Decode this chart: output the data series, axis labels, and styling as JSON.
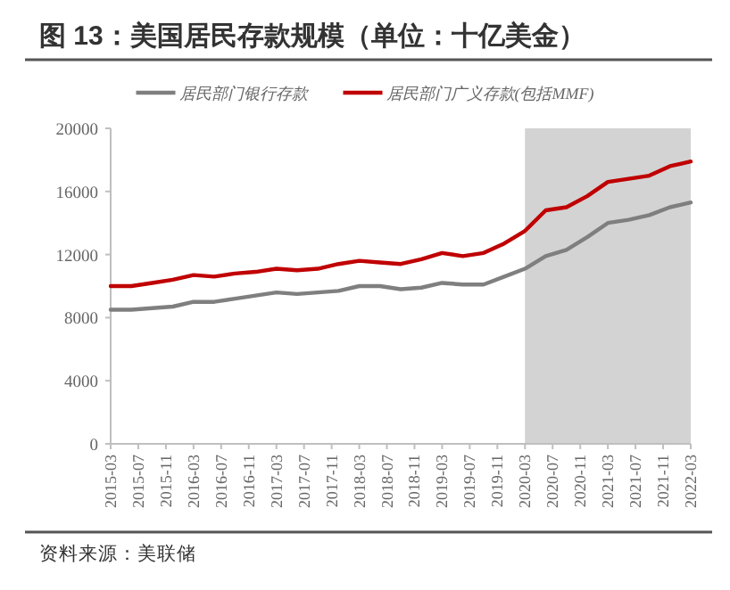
{
  "chart_data": {
    "type": "line",
    "title": "图 13：美国居民存款规模（单位：十亿美金）",
    "annotations": [
      "资料来源：美联储"
    ],
    "x": [
      "2015-03",
      "2015-06",
      "2015-09",
      "2015-12",
      "2016-03",
      "2016-06",
      "2016-09",
      "2016-12",
      "2017-03",
      "2017-06",
      "2017-09",
      "2017-12",
      "2018-03",
      "2018-06",
      "2018-09",
      "2018-12",
      "2019-03",
      "2019-06",
      "2019-09",
      "2019-12",
      "2020-03",
      "2020-06",
      "2020-09",
      "2020-12",
      "2021-03",
      "2021-06",
      "2021-09",
      "2021-12",
      "2022-03"
    ],
    "series": [
      {
        "name": "居民部门银行存款",
        "color": "#7f7f7f",
        "values": [
          8500,
          8500,
          8600,
          8700,
          9000,
          9000,
          9200,
          9400,
          9600,
          9500,
          9600,
          9700,
          10000,
          10000,
          9800,
          9900,
          10200,
          10100,
          10100,
          10600,
          11100,
          11900,
          12300,
          13100,
          14000,
          14200,
          14500,
          15000,
          15300
        ]
      },
      {
        "name": "居民部门广义存款(包括MMF)",
        "color": "#c00000",
        "values": [
          10000,
          10000,
          10200,
          10400,
          10700,
          10600,
          10800,
          10900,
          11100,
          11000,
          11100,
          11400,
          11600,
          11500,
          11400,
          11700,
          12100,
          11900,
          12100,
          12700,
          13500,
          14800,
          15000,
          15700,
          16600,
          16800,
          17000,
          17600,
          17900
        ]
      }
    ],
    "xlim": [
      "2015-03",
      "2022-03"
    ],
    "xticks": [
      "2015-03",
      "2015-07",
      "2015-11",
      "2016-03",
      "2016-07",
      "2016-11",
      "2017-03",
      "2017-07",
      "2017-11",
      "2018-03",
      "2018-07",
      "2018-11",
      "2019-03",
      "2019-07",
      "2019-11",
      "2020-03",
      "2020-07",
      "2020-11",
      "2021-03",
      "2021-07",
      "2021-11",
      "2022-03"
    ],
    "ylim": [
      0,
      20000
    ],
    "yticks": [
      0,
      4000,
      8000,
      12000,
      16000,
      20000
    ],
    "bands": [
      {
        "axis": "x",
        "from": "2020-03",
        "to": "2022-03",
        "color": "#d3d3d3"
      }
    ],
    "grid": false,
    "legend": "top",
    "marker": "none",
    "line_style": "solid"
  }
}
